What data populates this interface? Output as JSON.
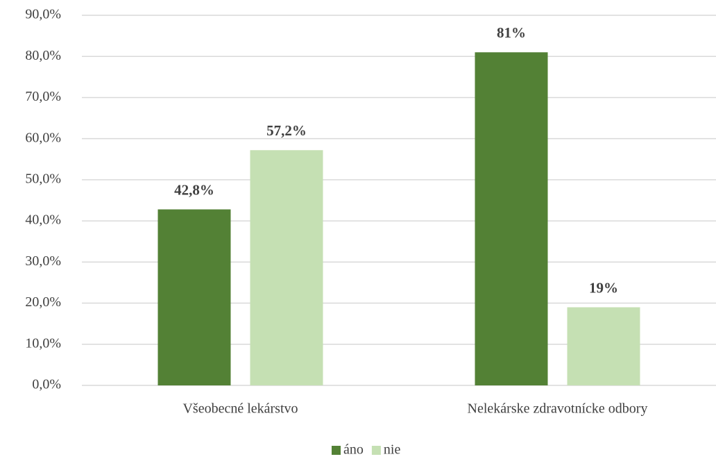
{
  "chart_data": {
    "type": "bar",
    "categories": [
      "Všeobecné lekárstvo",
      "Nelekárske zdravotnícke odbory"
    ],
    "series": [
      {
        "name": "áno",
        "color": "#538135",
        "values": [
          42.8,
          81
        ],
        "value_labels": [
          "42,8%",
          "81%"
        ]
      },
      {
        "name": "nie",
        "color": "#c5e0b3",
        "values": [
          57.2,
          19
        ],
        "value_labels": [
          "57,2%",
          "19%"
        ]
      }
    ],
    "ylim": [
      0,
      90
    ],
    "yticks": [
      {
        "value": 0,
        "label": "0,0%"
      },
      {
        "value": 10,
        "label": "10,0%"
      },
      {
        "value": 20,
        "label": "20,0%"
      },
      {
        "value": 30,
        "label": "30,0%"
      },
      {
        "value": 40,
        "label": "40,0%"
      },
      {
        "value": 50,
        "label": "50,0%"
      },
      {
        "value": 60,
        "label": "60,0%"
      },
      {
        "value": 70,
        "label": "70,0%"
      },
      {
        "value": 80,
        "label": "80,0%"
      },
      {
        "value": 90,
        "label": "90,0%"
      }
    ],
    "grid": true,
    "legend": "bottom"
  }
}
